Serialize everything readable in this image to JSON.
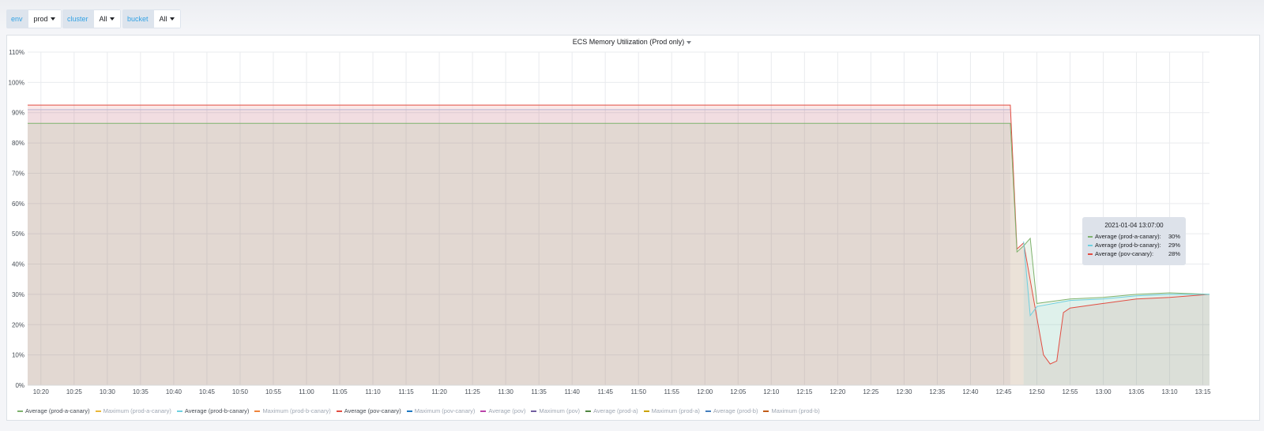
{
  "variables": [
    {
      "label": "env",
      "value": "prod"
    },
    {
      "label": "cluster",
      "value": "All"
    },
    {
      "label": "bucket",
      "value": "All"
    }
  ],
  "panel": {
    "title": "ECS Memory Utilization (Prod only)"
  },
  "tooltip": {
    "time": "2021-01-04 13:07:00",
    "rows": [
      {
        "name": "Average (prod-a-canary):",
        "value": "30%",
        "color": "#7eb26d"
      },
      {
        "name": "Average (prod-b-canary):",
        "value": "29%",
        "color": "#6ed0e0"
      },
      {
        "name": "Average (pov-canary):",
        "value": "28%",
        "color": "#e24d42"
      }
    ]
  },
  "legend": [
    {
      "name": "Average (prod-a-canary)",
      "color": "#7eb26d",
      "shown": true
    },
    {
      "name": "Maximum (prod-a-canary)",
      "color": "#eab839",
      "shown": false
    },
    {
      "name": "Average (prod-b-canary)",
      "color": "#6ed0e0",
      "shown": true
    },
    {
      "name": "Maximum (prod-b-canary)",
      "color": "#ef843c",
      "shown": false
    },
    {
      "name": "Average (pov-canary)",
      "color": "#e24d42",
      "shown": true
    },
    {
      "name": "Maximum (pov-canary)",
      "color": "#1f78c1",
      "shown": false
    },
    {
      "name": "Average (pov)",
      "color": "#ba43a9",
      "shown": false
    },
    {
      "name": "Maximum (pov)",
      "color": "#705da0",
      "shown": false
    },
    {
      "name": "Average (prod-a)",
      "color": "#508642",
      "shown": false
    },
    {
      "name": "Maximum (prod-a)",
      "color": "#cca300",
      "shown": false
    },
    {
      "name": "Average (prod-b)",
      "color": "#447ebc",
      "shown": false
    },
    {
      "name": "Maximum (prod-b)",
      "color": "#c15c17",
      "shown": false
    }
  ],
  "chart_data": {
    "type": "area",
    "title": "ECS Memory Utilization (Prod only)",
    "y_unit": "%",
    "ylim": [
      0,
      110
    ],
    "y_ticks": [
      "0%",
      "10%",
      "20%",
      "30%",
      "40%",
      "50%",
      "60%",
      "70%",
      "80%",
      "90%",
      "100%",
      "110%"
    ],
    "x_ticks": [
      "10:20",
      "10:25",
      "10:30",
      "10:35",
      "10:40",
      "10:45",
      "10:50",
      "10:55",
      "11:00",
      "11:05",
      "11:10",
      "11:15",
      "11:20",
      "11:25",
      "11:30",
      "11:35",
      "11:40",
      "11:45",
      "11:50",
      "11:55",
      "12:00",
      "12:05",
      "12:10",
      "12:15",
      "12:20",
      "12:25",
      "12:30",
      "12:35",
      "12:40",
      "12:45",
      "12:50",
      "12:55",
      "13:00",
      "13:05",
      "13:10",
      "13:15"
    ],
    "xlim": [
      "10:18",
      "13:16"
    ],
    "grid": true,
    "legend_position": "bottom",
    "series": [
      {
        "name": "Average (pov-canary)",
        "color": "#e24d42",
        "points": [
          [
            "10:18",
            92.5
          ],
          [
            "12:46",
            92.5
          ],
          [
            "12:47",
            45
          ],
          [
            "12:48",
            47
          ],
          [
            "12:51",
            10
          ],
          [
            "12:52",
            7
          ],
          [
            "12:53",
            8
          ],
          [
            "12:54",
            24
          ],
          [
            "12:55",
            25.5
          ],
          [
            "13:00",
            27
          ],
          [
            "13:05",
            28.5
          ],
          [
            "13:10",
            29
          ],
          [
            "13:16",
            30
          ]
        ]
      },
      {
        "name": "Average (prod-a-canary)",
        "color": "#7eb26d",
        "points": [
          [
            "10:18",
            86.5
          ],
          [
            "12:46",
            86.5
          ],
          [
            "12:47",
            44
          ],
          [
            "12:48",
            46
          ],
          [
            "12:49",
            48.5
          ],
          [
            "12:50",
            27
          ],
          [
            "12:55",
            28.5
          ],
          [
            "13:00",
            29
          ],
          [
            "13:05",
            30
          ],
          [
            "13:10",
            30.5
          ],
          [
            "13:16",
            30
          ]
        ]
      },
      {
        "name": "Average (prod-b-canary)",
        "color": "#6ed0e0",
        "points": [
          [
            "12:48",
            47.5
          ],
          [
            "12:49",
            23
          ],
          [
            "12:50",
            26
          ],
          [
            "12:55",
            28
          ],
          [
            "13:00",
            28.5
          ],
          [
            "13:05",
            29.5
          ],
          [
            "13:10",
            30
          ],
          [
            "13:16",
            30
          ]
        ]
      }
    ],
    "max_band": {
      "color": "#705da0",
      "points": [
        [
          "10:18",
          91
        ],
        [
          "12:46",
          91
        ]
      ]
    }
  }
}
